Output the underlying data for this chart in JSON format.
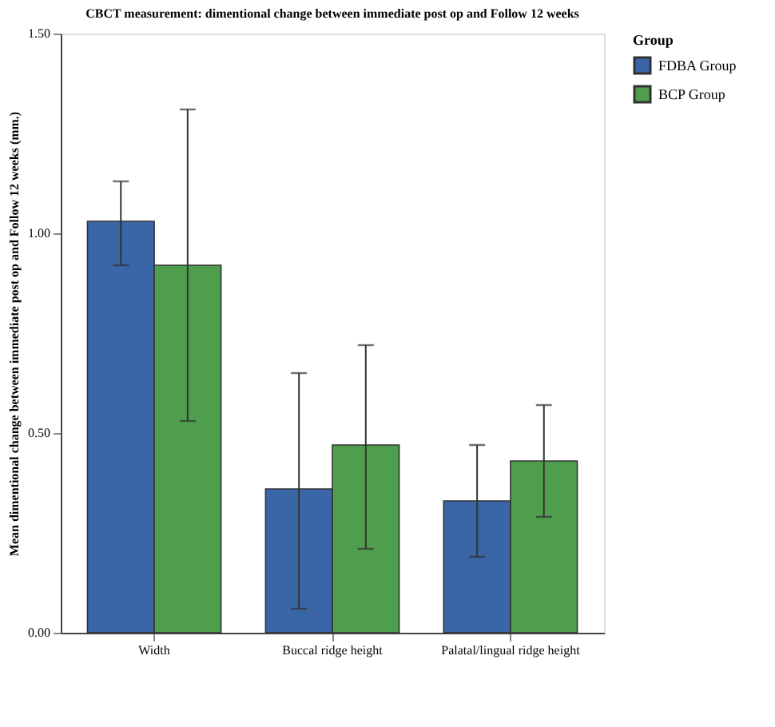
{
  "chart_data": {
    "type": "bar",
    "title": "CBCT measurement: dimentional change between immediate post op and Follow 12 weeks",
    "ylabel": "Mean dimentional change between immediate post op and Follow 12 weeks (mm.)",
    "legend_title": "Group",
    "categories": [
      "Width",
      "Buccal ridge height",
      "Palatal/lingual ridge height"
    ],
    "series": [
      {
        "name": "FDBA Group",
        "color": "#3a66a8",
        "values": [
          1.03,
          0.36,
          0.33
        ],
        "errors": [
          [
            0.92,
            1.13
          ],
          [
            0.06,
            0.65
          ],
          [
            0.19,
            0.47
          ]
        ]
      },
      {
        "name": "BCP Group",
        "color": "#4e9e4e",
        "values": [
          0.92,
          0.47,
          0.43
        ],
        "errors": [
          [
            0.53,
            1.31
          ],
          [
            0.21,
            0.72
          ],
          [
            0.29,
            0.57
          ]
        ]
      }
    ],
    "ylim": [
      0,
      1.5
    ],
    "yticks": [
      {
        "value": 0,
        "label": "0.00"
      },
      {
        "value": 0.5,
        "label": "0.50"
      },
      {
        "value": 1.0,
        "label": "1.00"
      },
      {
        "value": 1.5,
        "label": "1.50"
      }
    ],
    "grid": false,
    "legend": "top right"
  }
}
